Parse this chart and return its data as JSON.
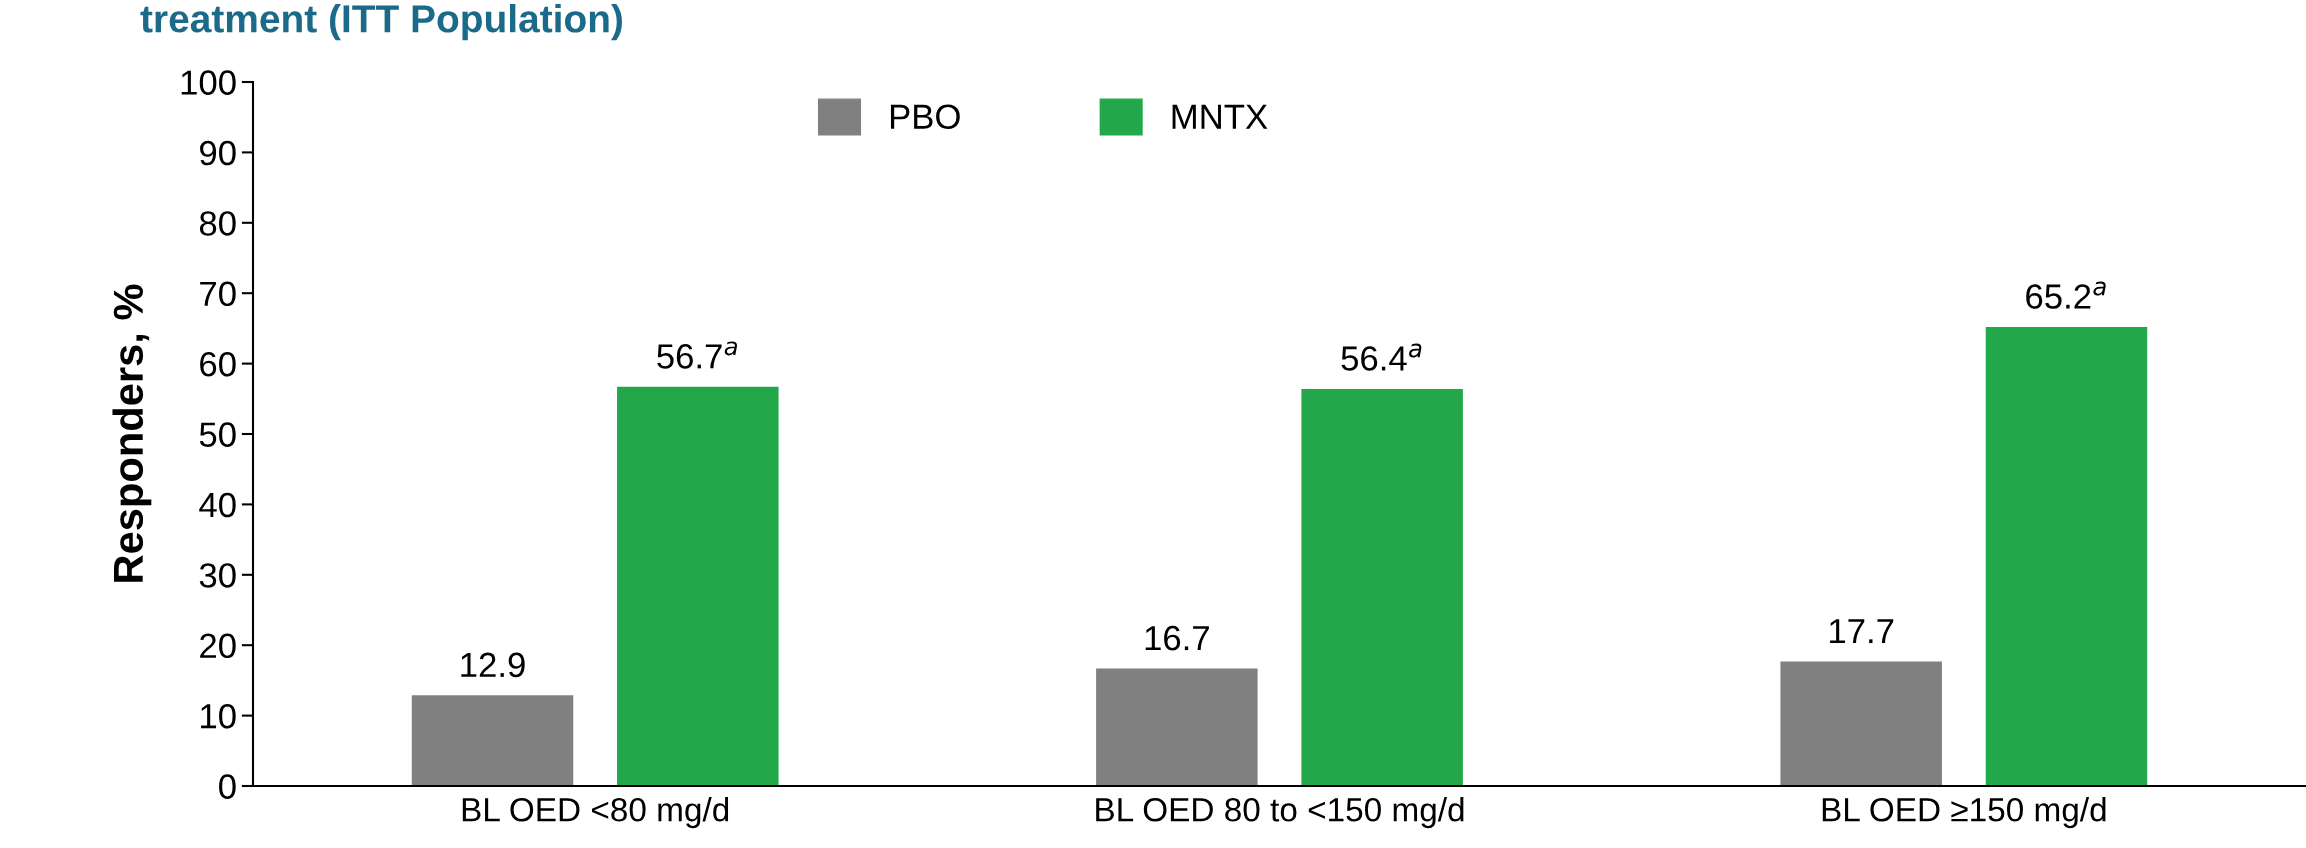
{
  "chart_data": {
    "type": "bar",
    "title": "treatment (ITT Population)",
    "categories": [
      "BL OED <80 mg/d",
      "BL OED 80 to <150 mg/d",
      "BL OED ≥150 mg/d"
    ],
    "series": [
      {
        "name": "PBO",
        "color": "#808080",
        "values": [
          12.9,
          16.7,
          17.7
        ],
        "value_labels": [
          "12.9",
          "16.7",
          "17.7"
        ]
      },
      {
        "name": "MNTX",
        "color": "#22a84a",
        "values": [
          56.7,
          56.4,
          65.2
        ],
        "value_labels": [
          "56.7$^{a}$",
          "56.4$^{a}$",
          "65.2$^{a}$"
        ]
      }
    ],
    "ylabel": "Responders, %",
    "ylim": [
      0,
      100
    ],
    "yticks": [
      0,
      10,
      20,
      30,
      40,
      50,
      60,
      70,
      80,
      90,
      100
    ],
    "grid": false,
    "legend": "top"
  }
}
